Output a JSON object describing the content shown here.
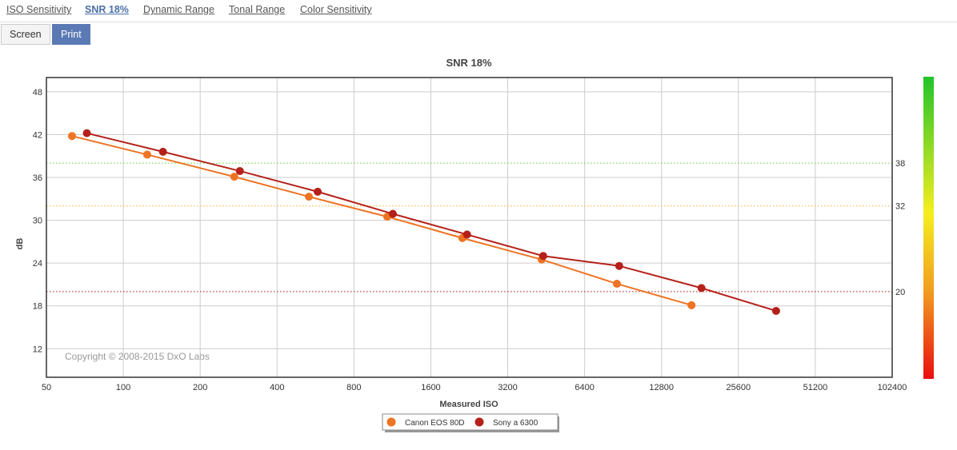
{
  "tabs": [
    "ISO Sensitivity",
    "SNR 18%",
    "Dynamic Range",
    "Tonal Range",
    "Color Sensitivity"
  ],
  "active_tab": 1,
  "buttons": [
    "Screen",
    "Print"
  ],
  "active_button": 1,
  "chart_data": {
    "type": "line",
    "title": "SNR 18%",
    "x_label": "Measured ISO",
    "y_label": "dB",
    "annotation": "Copyright © 2008-2015 DxO Labs",
    "x_log_base": 2,
    "xlim": [
      50,
      102400
    ],
    "xticks": [
      50,
      100,
      200,
      400,
      800,
      1600,
      3200,
      6400,
      12800,
      25600,
      51200,
      102400
    ],
    "ylim": [
      8,
      50
    ],
    "yticks": [
      12,
      18,
      24,
      30,
      36,
      42,
      48
    ],
    "grid": true,
    "reference_lines": [
      {
        "value": 38,
        "color": "#66cc33"
      },
      {
        "value": 32,
        "color": "#f0b030"
      },
      {
        "value": 20,
        "color": "#b01010"
      }
    ],
    "series": [
      {
        "name": "Canon EOS 80D",
        "color": "#ee7322",
        "x": [
          63,
          124,
          272,
          533,
          1080,
          2126,
          4343,
          8563,
          16770
        ],
        "values": [
          41.8,
          39.2,
          36.1,
          33.3,
          30.5,
          27.5,
          24.5,
          21.1,
          18.1
        ]
      },
      {
        "name": "Sony a 6300",
        "color": "#b5211a",
        "x": [
          72,
          143,
          286,
          577,
          1136,
          2217,
          4405,
          8740,
          18350,
          35960
        ],
        "values": [
          42.2,
          39.6,
          36.9,
          34.0,
          30.9,
          28.0,
          25.0,
          23.6,
          20.5,
          17.3
        ]
      }
    ]
  }
}
